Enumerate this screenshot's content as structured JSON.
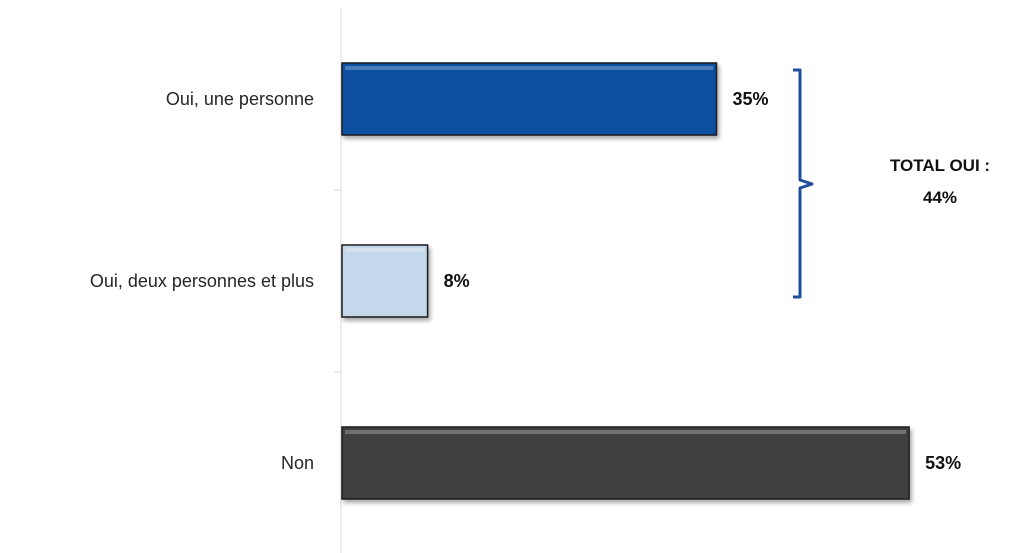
{
  "chart_data": {
    "type": "bar",
    "orientation": "horizontal",
    "categories": [
      "Oui, une personne",
      "Oui, deux personnes et plus",
      "Non"
    ],
    "values": [
      35,
      8,
      53
    ],
    "value_labels": [
      "35%",
      "8%",
      "53%"
    ],
    "colors": [
      "#0a4fa0",
      "#c5d7ea",
      "#404040"
    ],
    "xlim": [
      0,
      60
    ],
    "grid": false,
    "bracket": {
      "spans": [
        "Oui, une personne",
        "Oui, deux personnes et plus"
      ],
      "color": "#1f4e9c",
      "label_line1": "TOTAL OUI :",
      "label_line2": "44%"
    }
  }
}
